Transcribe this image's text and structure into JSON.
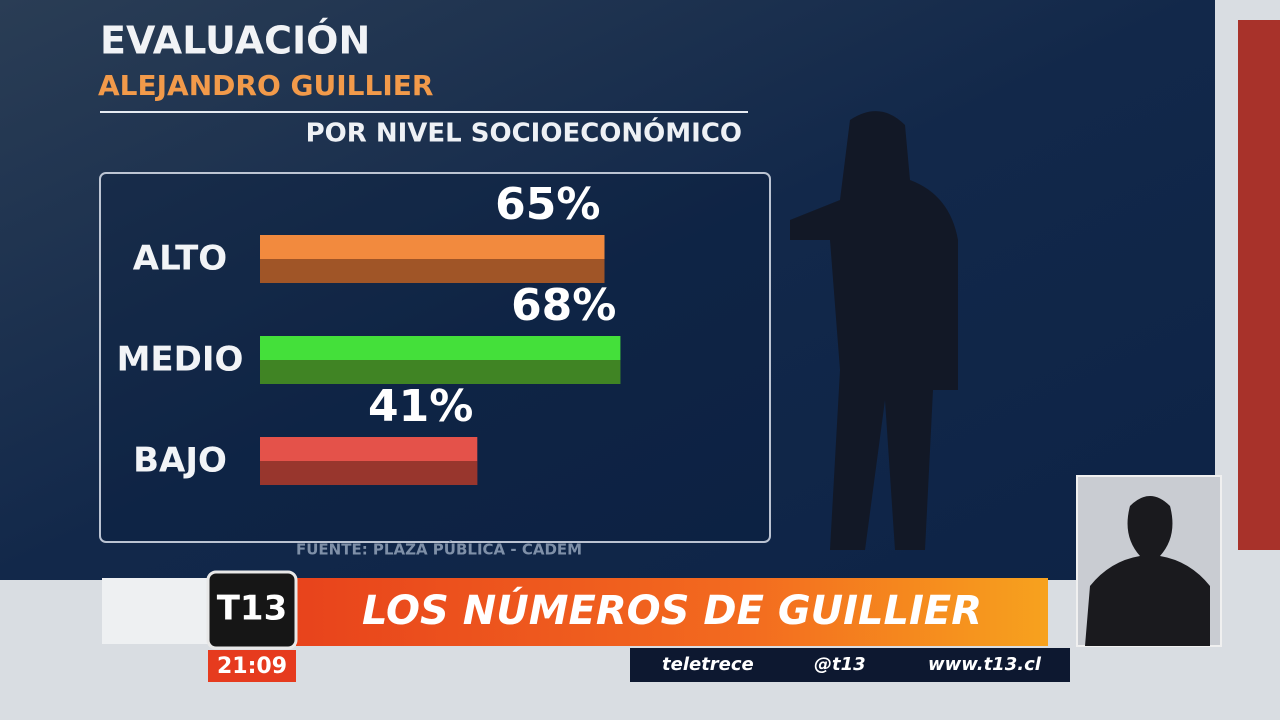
{
  "chart_data": {
    "type": "bar",
    "orientation": "horizontal",
    "title": "EVALUACIÓN",
    "subtitle": "ALEJANDRO GUILLIER",
    "category_title": "POR NIVEL SOCIOECONÓMICO",
    "source": "FUENTE: PLAZA PÚBLICA - CADEM",
    "categories": [
      "ALTO",
      "MEDIO",
      "BAJO"
    ],
    "values": [
      65,
      68,
      41
    ],
    "value_labels": [
      "65%",
      "68%",
      "41%"
    ],
    "colors": [
      "#f28a3e",
      "#44e03a",
      "#e4524a"
    ]
  },
  "broadcast": {
    "logo": "T13",
    "time": "21:09",
    "headline": "LOS NÚMEROS DE GUILLIER",
    "social": [
      "teletrece",
      "@t13",
      "www.t13.cl"
    ]
  }
}
